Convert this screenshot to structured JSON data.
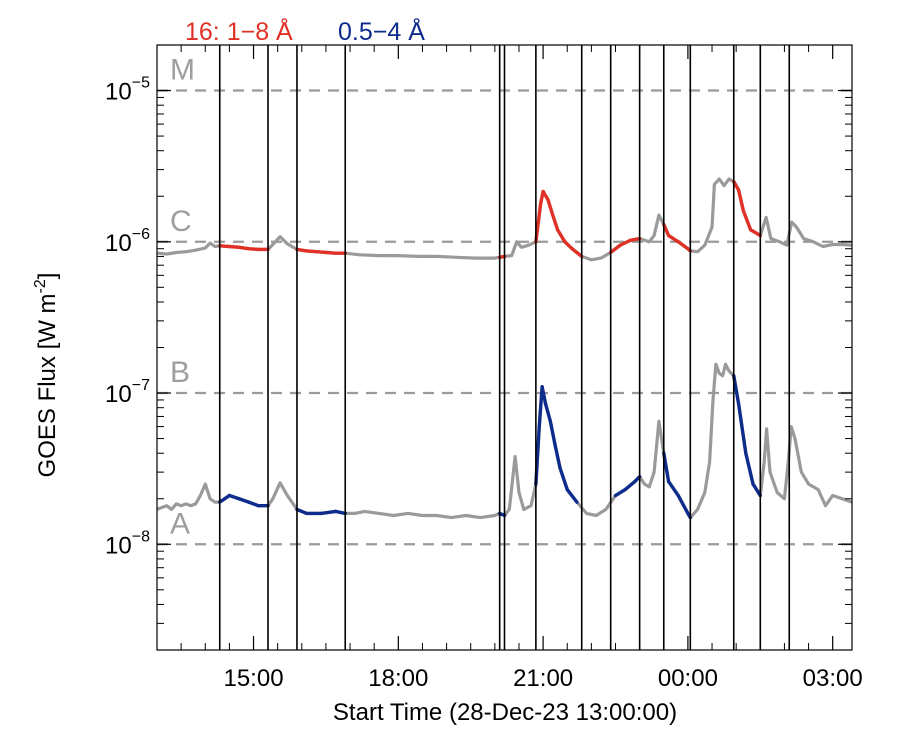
{
  "chart_data": {
    "type": "line",
    "title": "",
    "xlabel": "Start Time (28-Dec-23 13:00:00)",
    "ylabel_main": "GOES Flux [W m",
    "ylabel_sup": "-2",
    "ylabel_close": "]",
    "y_scale": "log",
    "ylim": [
      2e-09,
      2e-05
    ],
    "xlim": [
      0,
      14.4
    ],
    "x_units": "hours after 28-Dec-23 13:00:00",
    "grid": false,
    "legend_position": "top-left, above plot",
    "legend": [
      {
        "label": "16: 1−8 Å",
        "color": "#e03127"
      },
      {
        "label": "0.5−4 Å",
        "color": "#0e2c8c"
      }
    ],
    "x_ticks": [
      {
        "value": 2,
        "label": "15:00"
      },
      {
        "value": 5,
        "label": "18:00"
      },
      {
        "value": 8,
        "label": "21:00"
      },
      {
        "value": 11,
        "label": "00:00"
      },
      {
        "value": 14,
        "label": "03:00"
      }
    ],
    "y_ticks": [
      {
        "value": 1e-08,
        "base": "10",
        "exp": "−8"
      },
      {
        "value": 1e-07,
        "base": "10",
        "exp": "−7"
      },
      {
        "value": 1e-06,
        "base": "10",
        "exp": "−6"
      },
      {
        "value": 1e-05,
        "base": "10",
        "exp": "−5"
      }
    ],
    "flare_class_lines": [
      {
        "label": "A",
        "value": 1e-08
      },
      {
        "label": "B",
        "value": 1e-07
      },
      {
        "label": "C",
        "value": 1e-06
      },
      {
        "label": "M",
        "value": 1e-05
      }
    ],
    "vertical_markers": [
      1.3,
      2.3,
      2.9,
      3.9,
      7.1,
      7.2,
      7.85,
      8.8,
      9.4,
      10.0,
      10.5,
      11.05,
      11.95,
      12.5,
      13.1
    ],
    "colors": {
      "background_curve": "#9a9a9a",
      "long_channel": "#e03127",
      "short_channel": "#0e2c8c",
      "class_line": "#9a9a9a",
      "marker": "#000000"
    },
    "series": [
      {
        "channel": "1-8",
        "points": [
          [
            0.0,
            8.4e-07
          ],
          [
            0.2,
            8.3e-07
          ],
          [
            0.4,
            8.5e-07
          ],
          [
            0.6,
            8.6e-07
          ],
          [
            0.8,
            8.8e-07
          ],
          [
            1.0,
            9.1e-07
          ],
          [
            1.1,
            9.8e-07
          ],
          [
            1.2,
            9.3e-07
          ],
          [
            1.3,
            9.4e-07
          ],
          [
            1.5,
            9.3e-07
          ],
          [
            1.7,
            9.2e-07
          ],
          [
            1.9,
            9e-07
          ],
          [
            2.1,
            8.9e-07
          ],
          [
            2.3,
            8.9e-07
          ],
          [
            2.4,
            9.6e-07
          ],
          [
            2.55,
            1.08e-06
          ],
          [
            2.7,
            9.7e-07
          ],
          [
            2.9,
            8.9e-07
          ],
          [
            3.1,
            8.7e-07
          ],
          [
            3.3,
            8.6e-07
          ],
          [
            3.5,
            8.5e-07
          ],
          [
            3.7,
            8.4e-07
          ],
          [
            3.9,
            8.4e-07
          ],
          [
            4.2,
            8.2e-07
          ],
          [
            4.6,
            8.1e-07
          ],
          [
            5.0,
            8.1e-07
          ],
          [
            5.4,
            8e-07
          ],
          [
            5.8,
            8e-07
          ],
          [
            6.2,
            7.9e-07
          ],
          [
            6.6,
            7.8e-07
          ],
          [
            7.0,
            7.8e-07
          ],
          [
            7.1,
            7.9e-07
          ],
          [
            7.2,
            8e-07
          ],
          [
            7.35,
            8.1e-07
          ],
          [
            7.45,
            1e-06
          ],
          [
            7.55,
            9.2e-07
          ],
          [
            7.7,
            9.5e-07
          ],
          [
            7.85,
            1e-06
          ],
          [
            7.95,
            1.8e-06
          ],
          [
            8.0,
            2.15e-06
          ],
          [
            8.1,
            1.9e-06
          ],
          [
            8.2,
            1.5e-06
          ],
          [
            8.3,
            1.2e-06
          ],
          [
            8.45,
            1e-06
          ],
          [
            8.6,
            9e-07
          ],
          [
            8.8,
            8e-07
          ],
          [
            9.0,
            7.6e-07
          ],
          [
            9.2,
            7.8e-07
          ],
          [
            9.4,
            8.5e-07
          ],
          [
            9.6,
            9.5e-07
          ],
          [
            9.8,
            1.02e-06
          ],
          [
            10.0,
            1.05e-06
          ],
          [
            10.2,
            1e-06
          ],
          [
            10.3,
            1.1e-06
          ],
          [
            10.4,
            1.5e-06
          ],
          [
            10.5,
            1.3e-06
          ],
          [
            10.6,
            1.1e-06
          ],
          [
            10.8,
            1e-06
          ],
          [
            11.0,
            9e-07
          ],
          [
            11.05,
            8.7e-07
          ],
          [
            11.2,
            8.6e-07
          ],
          [
            11.35,
            9.5e-07
          ],
          [
            11.5,
            1.25e-06
          ],
          [
            11.55,
            2.4e-06
          ],
          [
            11.65,
            2.6e-06
          ],
          [
            11.75,
            2.35e-06
          ],
          [
            11.85,
            2.6e-06
          ],
          [
            11.95,
            2.5e-06
          ],
          [
            12.05,
            2.2e-06
          ],
          [
            12.15,
            1.6e-06
          ],
          [
            12.3,
            1.2e-06
          ],
          [
            12.5,
            1.1e-06
          ],
          [
            12.62,
            1.45e-06
          ],
          [
            12.72,
            1.05e-06
          ],
          [
            12.9,
            1e-06
          ],
          [
            13.05,
            9.5e-07
          ],
          [
            13.15,
            1.35e-06
          ],
          [
            13.25,
            1.25e-06
          ],
          [
            13.4,
            1.05e-06
          ],
          [
            13.6,
            1e-06
          ],
          [
            13.8,
            9.3e-07
          ],
          [
            14.0,
            9.6e-07
          ],
          [
            14.2,
            9.6e-07
          ],
          [
            14.4,
            9.5e-07
          ]
        ]
      },
      {
        "channel": "0.5-4",
        "points": [
          [
            0.0,
            1.7e-08
          ],
          [
            0.1,
            1.75e-08
          ],
          [
            0.2,
            1.8e-08
          ],
          [
            0.3,
            1.7e-08
          ],
          [
            0.4,
            1.85e-08
          ],
          [
            0.5,
            1.8e-08
          ],
          [
            0.6,
            1.85e-08
          ],
          [
            0.7,
            1.8e-08
          ],
          [
            0.8,
            1.85e-08
          ],
          [
            0.9,
            2.1e-08
          ],
          [
            1.0,
            2.5e-08
          ],
          [
            1.1,
            2e-08
          ],
          [
            1.2,
            1.9e-08
          ],
          [
            1.3,
            1.9e-08
          ],
          [
            1.5,
            2.1e-08
          ],
          [
            1.7,
            2e-08
          ],
          [
            1.9,
            1.9e-08
          ],
          [
            2.1,
            1.8e-08
          ],
          [
            2.3,
            1.8e-08
          ],
          [
            2.4,
            2e-08
          ],
          [
            2.55,
            2.55e-08
          ],
          [
            2.7,
            2.1e-08
          ],
          [
            2.9,
            1.7e-08
          ],
          [
            3.1,
            1.6e-08
          ],
          [
            3.4,
            1.6e-08
          ],
          [
            3.7,
            1.65e-08
          ],
          [
            3.9,
            1.6e-08
          ],
          [
            4.1,
            1.6e-08
          ],
          [
            4.3,
            1.65e-08
          ],
          [
            4.6,
            1.6e-08
          ],
          [
            4.9,
            1.55e-08
          ],
          [
            5.2,
            1.6e-08
          ],
          [
            5.5,
            1.55e-08
          ],
          [
            5.8,
            1.55e-08
          ],
          [
            6.1,
            1.5e-08
          ],
          [
            6.4,
            1.55e-08
          ],
          [
            6.7,
            1.5e-08
          ],
          [
            7.0,
            1.55e-08
          ],
          [
            7.1,
            1.6e-08
          ],
          [
            7.2,
            1.55e-08
          ],
          [
            7.3,
            1.7e-08
          ],
          [
            7.42,
            3.8e-08
          ],
          [
            7.5,
            2.2e-08
          ],
          [
            7.6,
            1.7e-08
          ],
          [
            7.75,
            1.8e-08
          ],
          [
            7.85,
            2.5e-08
          ],
          [
            7.92,
            6e-08
          ],
          [
            7.98,
            1.1e-07
          ],
          [
            8.05,
            8.5e-08
          ],
          [
            8.15,
            6.5e-08
          ],
          [
            8.25,
            4.5e-08
          ],
          [
            8.35,
            3.2e-08
          ],
          [
            8.5,
            2.3e-08
          ],
          [
            8.7,
            1.9e-08
          ],
          [
            8.9,
            1.6e-08
          ],
          [
            9.1,
            1.55e-08
          ],
          [
            9.3,
            1.7e-08
          ],
          [
            9.5,
            2.1e-08
          ],
          [
            9.7,
            2.3e-08
          ],
          [
            9.9,
            2.6e-08
          ],
          [
            10.0,
            2.8e-08
          ],
          [
            10.1,
            2.5e-08
          ],
          [
            10.2,
            2.4e-08
          ],
          [
            10.3,
            3e-08
          ],
          [
            10.4,
            6.5e-08
          ],
          [
            10.5,
            4e-08
          ],
          [
            10.6,
            2.6e-08
          ],
          [
            10.8,
            2.1e-08
          ],
          [
            11.0,
            1.6e-08
          ],
          [
            11.05,
            1.5e-08
          ],
          [
            11.2,
            1.7e-08
          ],
          [
            11.35,
            2.2e-08
          ],
          [
            11.45,
            3.5e-08
          ],
          [
            11.52,
            9e-08
          ],
          [
            11.58,
            1.55e-07
          ],
          [
            11.65,
            1.35e-07
          ],
          [
            11.72,
            1.3e-07
          ],
          [
            11.78,
            1.55e-07
          ],
          [
            11.85,
            1.4e-07
          ],
          [
            11.95,
            1.3e-07
          ],
          [
            12.05,
            8.5e-08
          ],
          [
            12.2,
            4e-08
          ],
          [
            12.35,
            2.5e-08
          ],
          [
            12.5,
            2.1e-08
          ],
          [
            12.58,
            3.5e-08
          ],
          [
            12.63,
            5.8e-08
          ],
          [
            12.7,
            3e-08
          ],
          [
            12.85,
            2.2e-08
          ],
          [
            13.0,
            2e-08
          ],
          [
            13.08,
            3.5e-08
          ],
          [
            13.14,
            6e-08
          ],
          [
            13.22,
            5e-08
          ],
          [
            13.35,
            3e-08
          ],
          [
            13.5,
            2.5e-08
          ],
          [
            13.7,
            2.3e-08
          ],
          [
            13.85,
            1.8e-08
          ],
          [
            14.0,
            2.1e-08
          ],
          [
            14.2,
            2e-08
          ],
          [
            14.4,
            1.9e-08
          ]
        ]
      }
    ]
  }
}
